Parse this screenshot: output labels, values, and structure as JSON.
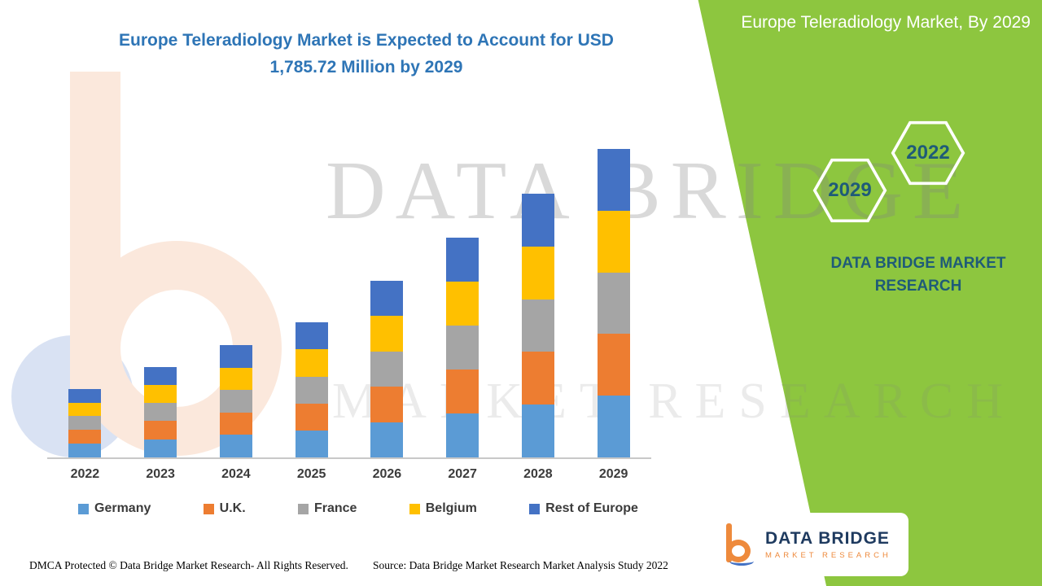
{
  "headline": "Europe Teleradiology Market is Expected to Account for USD 1,785.72 Million by 2029",
  "panel": {
    "title": "Europe Teleradiology Market, By 2029",
    "hexagon_2029": "2029",
    "hexagon_2022": "2022",
    "brand": "DATA BRIDGE MARKET RESEARCH"
  },
  "watermark": {
    "line1": "DATA BRIDGE",
    "line2": "MARKET RESEARCH"
  },
  "chart_data": {
    "type": "bar",
    "stacked": true,
    "unit": "USD Million",
    "title": "Europe Teleradiology Market is Expected to Account for USD 1,785.72 Million by 2029",
    "legend_position": "bottom",
    "y_axis_visible": false,
    "values_estimated": true,
    "categories": [
      "2022",
      "2023",
      "2024",
      "2025",
      "2026",
      "2027",
      "2028",
      "2029"
    ],
    "totals": [
      396,
      523,
      650,
      782,
      1022,
      1272,
      1527,
      1785.72
    ],
    "series": [
      {
        "name": "Germany",
        "color": "#5B9BD5",
        "values": [
          80,
          105,
          130,
          157,
          205,
          255,
          306,
          357.72
        ]
      },
      {
        "name": "U.K.",
        "color": "#ED7D31",
        "values": [
          79,
          105,
          130,
          156,
          204,
          254,
          305,
          357
        ]
      },
      {
        "name": "France",
        "color": "#A5A5A5",
        "values": [
          79,
          104,
          130,
          156,
          204,
          254,
          305,
          357
        ]
      },
      {
        "name": "Belgium",
        "color": "#FFC000",
        "values": [
          79,
          105,
          130,
          157,
          205,
          255,
          306,
          357
        ]
      },
      {
        "name": "Rest of Europe",
        "color": "#4472C4",
        "values": [
          79,
          104,
          130,
          156,
          204,
          254,
          305,
          357
        ]
      }
    ]
  },
  "footer": {
    "dmca": "DMCA Protected © Data Bridge Market Research- All Rights Reserved.",
    "source": "Source: Data Bridge Market Research Market Analysis Study 2022"
  },
  "logo": {
    "title": "DATA BRIDGE",
    "subtitle": "MARKET RESEARCH"
  },
  "colors": {
    "accent_green": "#8DC63F",
    "headline_blue": "#2E75B6",
    "panel_text_blue": "#1F5B78"
  }
}
